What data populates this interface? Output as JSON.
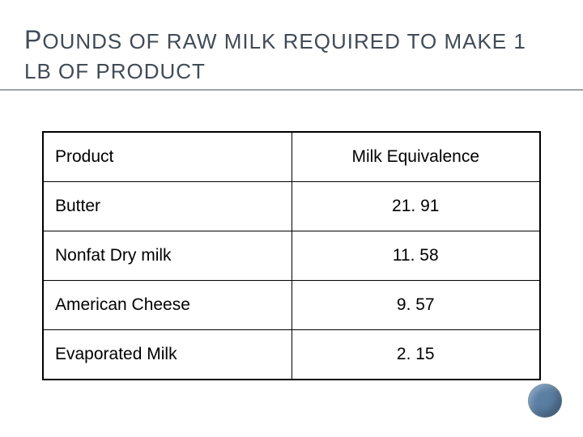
{
  "title_line1_first": "P",
  "title_line1_rest": "OUNDS OF RAW MILK REQUIRED TO MAKE 1",
  "title_line2": "LB OF PRODUCT",
  "table": {
    "columns": [
      "Product",
      "Milk Equivalence"
    ],
    "rows": [
      [
        "Butter",
        "21. 91"
      ],
      [
        "Nonfat Dry milk",
        "11. 58"
      ],
      [
        "American Cheese",
        "9. 57"
      ],
      [
        "Evaporated Milk",
        "2. 15"
      ]
    ],
    "border_color": "#000000",
    "header_fontsize": 21,
    "cell_fontsize": 21
  },
  "accent_circle_color": "#5a7fa3",
  "underline_color": "#9fa4a9",
  "title_color": "#414b56",
  "background_color": "#ffffff"
}
